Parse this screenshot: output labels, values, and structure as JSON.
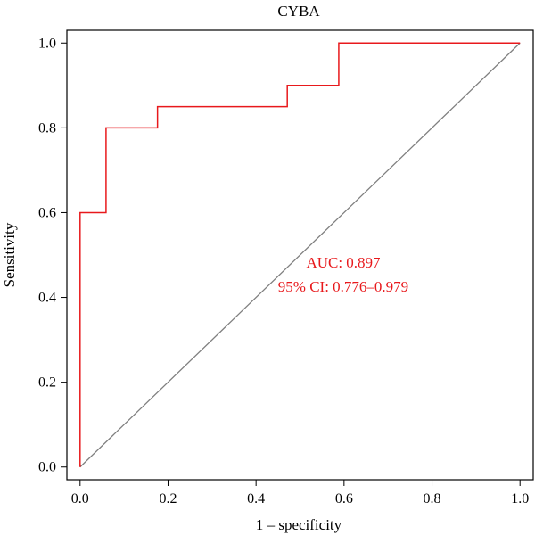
{
  "chart_data": {
    "type": "line",
    "title": "CYBA",
    "xlabel": "1 – specificity",
    "ylabel": "Sensitivity",
    "xlim": [
      -0.03,
      1.03
    ],
    "ylim": [
      -0.03,
      1.03
    ],
    "x_ticks": [
      0.0,
      0.2,
      0.4,
      0.6,
      0.8,
      1.0
    ],
    "y_ticks": [
      0.0,
      0.2,
      0.4,
      0.6,
      0.8,
      1.0
    ],
    "x_tick_labels": [
      "0.0",
      "0.2",
      "0.4",
      "0.6",
      "0.8",
      "1.0"
    ],
    "y_tick_labels": [
      "0.0",
      "0.2",
      "0.4",
      "0.6",
      "0.8",
      "1.0"
    ],
    "grid": false,
    "series": [
      {
        "x": [
          0.0,
          0.0,
          0.059,
          0.059,
          0.176,
          0.176,
          0.471,
          0.471,
          0.588,
          0.588,
          1.0
        ],
        "y": [
          0.0,
          0.6,
          0.6,
          0.8,
          0.8,
          0.85,
          0.85,
          0.9,
          0.9,
          1.0,
          1.0
        ],
        "color": "#e8191c"
      },
      {
        "x": [
          0.0,
          1.0
        ],
        "y": [
          0.0,
          1.0
        ],
        "color": "#7f7f7f"
      }
    ],
    "annotations": [
      {
        "text": "AUC: 0.897",
        "color": "#e8191c"
      },
      {
        "text": "95% CI: 0.776–0.979",
        "color": "#e8191c"
      }
    ]
  }
}
